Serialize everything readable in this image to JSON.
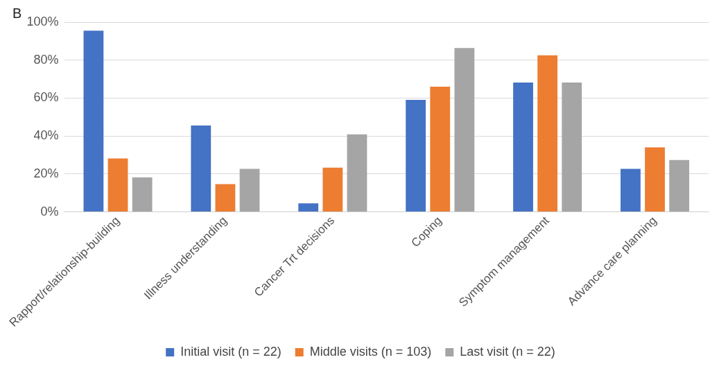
{
  "chart_data": {
    "type": "bar",
    "title": "B",
    "categories": [
      "Rapport/relationship-building",
      "Illness understanding",
      "Cancer Trt decisions",
      "Coping",
      "Symptom management",
      "Advance care planning"
    ],
    "series": [
      {
        "name": "Initial visit (n = 22)",
        "color": "#4472c4",
        "values": [
          95.5,
          45.5,
          4.5,
          59.1,
          68.2,
          22.7
        ]
      },
      {
        "name": "Middle visits (n = 103)",
        "color": "#ed7d31",
        "values": [
          28.2,
          14.6,
          23.3,
          66.0,
          82.5,
          34.0
        ]
      },
      {
        "name": "Last visit (n = 22)",
        "color": "#a5a5a5",
        "values": [
          18.2,
          22.7,
          40.9,
          86.4,
          68.2,
          27.3
        ]
      }
    ],
    "ylim": [
      0,
      100
    ],
    "yticks": [
      {
        "value": 0,
        "label": "0%"
      },
      {
        "value": 20,
        "label": "20%"
      },
      {
        "value": 40,
        "label": "40%"
      },
      {
        "value": 60,
        "label": "60%"
      },
      {
        "value": 80,
        "label": "80%"
      },
      {
        "value": 100,
        "label": "100%"
      }
    ],
    "grid": "y",
    "legend": "bottom"
  }
}
